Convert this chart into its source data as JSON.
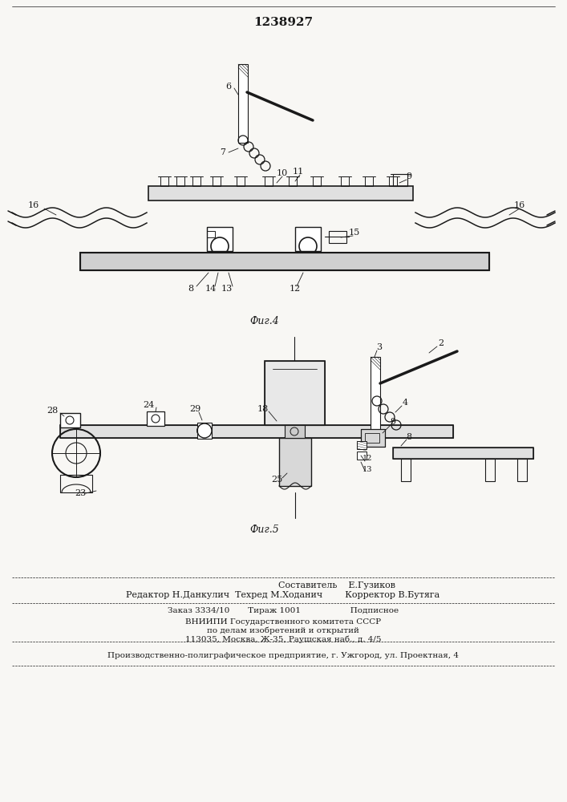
{
  "title": "1238927",
  "fig4_label": "Фиг.4",
  "fig5_label": "Фиг.5",
  "bg_color": "#f8f7f4",
  "line_color": "#1a1a1a",
  "footer_lines": [
    "Составитель    Е.Гузиков",
    "Редактор Н.Данкулич  Техред М.Ходанич        Корректор В.Бутяга",
    "Заказ 3334/10       Тираж 1001                   Подписное",
    "ВНИИПИ Государственного комитета СССР",
    "по делам изобретений и открытий",
    "113035, Москва, Ж-35, Раушская наб., д. 4/5",
    "Производственно-полиграфическое предприятие, г. Ужгород, ул. Проектная, 4"
  ]
}
